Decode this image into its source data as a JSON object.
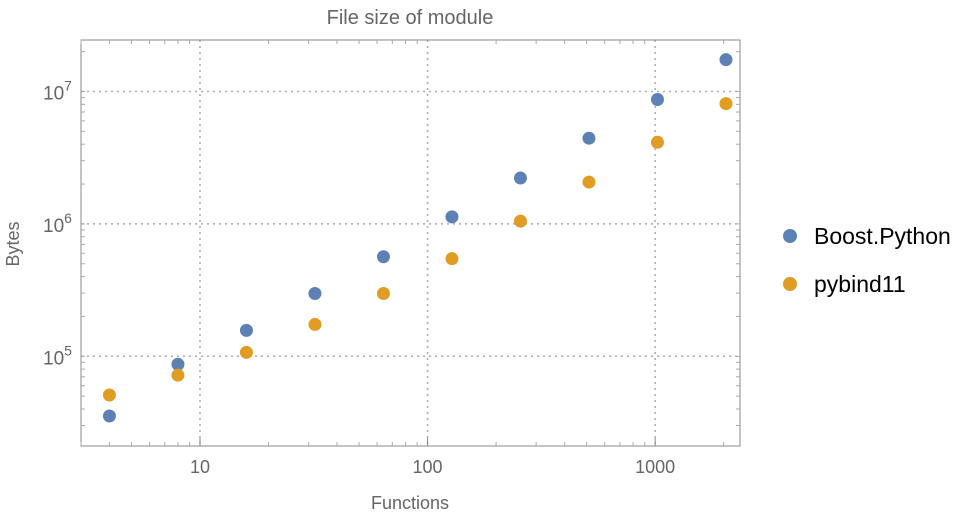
{
  "chart_data": {
    "type": "scatter",
    "title": "File size of module",
    "xlabel": "Functions",
    "ylabel": "Bytes",
    "xscale": "log",
    "yscale": "log",
    "xlim": [
      3,
      2360
    ],
    "ylim": [
      21000,
      24500000
    ],
    "xticks": [
      {
        "value": 10,
        "label": "10"
      },
      {
        "value": 100,
        "label": "100"
      },
      {
        "value": 1000,
        "label": "1000"
      }
    ],
    "yticks": [
      {
        "value": 100000,
        "exp": "5"
      },
      {
        "value": 1000000,
        "exp": "6"
      },
      {
        "value": 10000000,
        "exp": "7"
      }
    ],
    "ytick_base": "10",
    "grid": true,
    "legend_position": "right",
    "x": [
      4,
      8,
      16,
      32,
      64,
      128,
      256,
      512,
      1024,
      2048
    ],
    "series": [
      {
        "name": "Boost.Python",
        "color": "#5E81B5",
        "values": [
          35400,
          87000,
          157000,
          298000,
          565000,
          1130000,
          2220000,
          4440000,
          8700000,
          17400000
        ]
      },
      {
        "name": "pybind11",
        "color": "#E19C24",
        "values": [
          51000,
          72000,
          107000,
          174000,
          298000,
          546000,
          1050000,
          2070000,
          4140000,
          8100000
        ]
      }
    ]
  }
}
